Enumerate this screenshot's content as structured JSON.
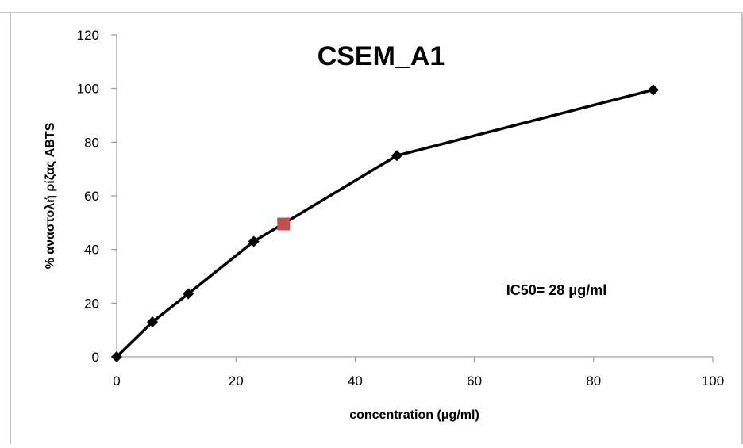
{
  "chart_data": {
    "type": "scatter",
    "title": "CSEM_A1",
    "xlabel": "concentration (μg/ml)",
    "ylabel": "% αναστολή ρίζας ABTS",
    "xlim": [
      0,
      100
    ],
    "ylim": [
      0,
      120
    ],
    "xticks": [
      "0",
      "20",
      "40",
      "60",
      "80",
      "100"
    ],
    "yticks": [
      "0",
      "20",
      "40",
      "60",
      "80",
      "100",
      "120"
    ],
    "grid": false,
    "legend": "none",
    "series": [
      {
        "marker": "diamond",
        "color": "#000000",
        "line": true,
        "points": [
          {
            "x": 0,
            "y": 0
          },
          {
            "x": 6,
            "y": 13
          },
          {
            "x": 12,
            "y": 23.5
          },
          {
            "x": 23,
            "y": 43
          },
          {
            "x": 47,
            "y": 75
          },
          {
            "x": 90,
            "y": 99.5
          }
        ]
      }
    ],
    "highlight_point": {
      "x": 28,
      "y": 49.5,
      "marker": "square",
      "color": "#c0504d"
    },
    "annotation": "IC50= 28 μg/ml"
  }
}
